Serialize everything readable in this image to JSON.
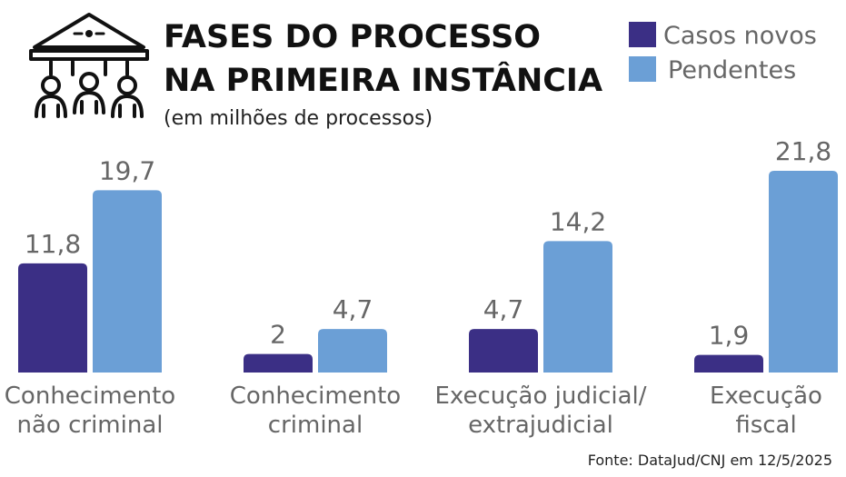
{
  "chart_data": {
    "type": "bar",
    "title": [
      "FASES DO PROCESSO",
      "NA PRIMEIRA INSTÂNCIA"
    ],
    "subtitle": "(em milhões de processos)",
    "categories": [
      [
        "Conhecimento",
        "não criminal"
      ],
      [
        "Conhecimento",
        "criminal"
      ],
      [
        "Execução judicial/",
        "extrajudicial"
      ],
      [
        "Execução",
        "fiscal"
      ]
    ],
    "series": [
      {
        "name": "Casos novos",
        "color": "#3b2f85",
        "values": [
          11.8,
          2,
          4.7,
          1.9
        ],
        "labels": [
          "11,8",
          "2",
          "4,7",
          "1,9"
        ]
      },
      {
        "name": "Pendentes",
        "color": "#6b9fd6",
        "values": [
          19.7,
          4.7,
          14.2,
          21.8
        ],
        "labels": [
          "19,7",
          "4,7",
          "14,2",
          "21,8"
        ]
      }
    ],
    "ylim": [
      0,
      21.8
    ],
    "legend": "top-right",
    "grid": false,
    "source": "Fonte: DataJud/CNJ em 12/5/2025",
    "icon": "courthouse-people-icon"
  }
}
